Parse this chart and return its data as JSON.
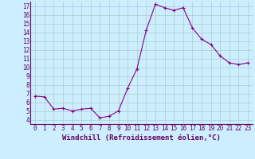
{
  "x": [
    0,
    1,
    2,
    3,
    4,
    5,
    6,
    7,
    8,
    9,
    10,
    11,
    12,
    13,
    14,
    15,
    16,
    17,
    18,
    19,
    20,
    21,
    22,
    23
  ],
  "y": [
    6.7,
    6.6,
    5.2,
    5.3,
    5.0,
    5.2,
    5.3,
    4.2,
    4.4,
    5.0,
    7.6,
    9.8,
    14.2,
    17.2,
    16.8,
    16.5,
    16.8,
    14.5,
    13.2,
    12.6,
    11.3,
    10.5,
    10.3,
    10.5
  ],
  "line_color": "#880088",
  "marker": "+",
  "marker_size": 3,
  "bg_color": "#cceeff",
  "grid_color": "#aacccc",
  "xlabel": "Windchill (Refroidissement éolien,°C)",
  "xlim": [
    -0.5,
    23.5
  ],
  "ylim": [
    3.5,
    17.5
  ],
  "yticks": [
    4,
    5,
    6,
    7,
    8,
    9,
    10,
    11,
    12,
    13,
    14,
    15,
    16,
    17
  ],
  "xticks": [
    0,
    1,
    2,
    3,
    4,
    5,
    6,
    7,
    8,
    9,
    10,
    11,
    12,
    13,
    14,
    15,
    16,
    17,
    18,
    19,
    20,
    21,
    22,
    23
  ],
  "tick_label_fontsize": 5.5,
  "xlabel_fontsize": 6.5,
  "axis_color": "#660066",
  "spine_color": "#660066"
}
